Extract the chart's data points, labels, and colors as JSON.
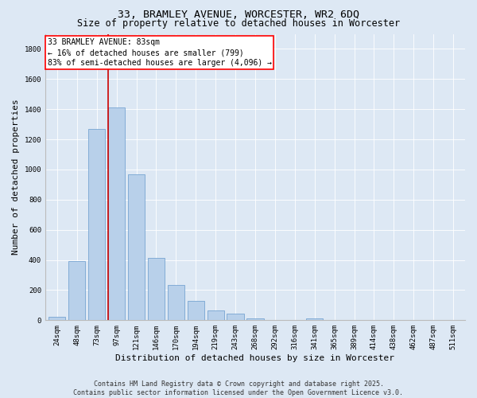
{
  "title": "33, BRAMLEY AVENUE, WORCESTER, WR2 6DQ",
  "subtitle": "Size of property relative to detached houses in Worcester",
  "xlabel": "Distribution of detached houses by size in Worcester",
  "ylabel": "Number of detached properties",
  "categories": [
    "24sqm",
    "48sqm",
    "73sqm",
    "97sqm",
    "121sqm",
    "146sqm",
    "170sqm",
    "194sqm",
    "219sqm",
    "243sqm",
    "268sqm",
    "292sqm",
    "316sqm",
    "341sqm",
    "365sqm",
    "389sqm",
    "414sqm",
    "438sqm",
    "462sqm",
    "487sqm",
    "511sqm"
  ],
  "values": [
    25,
    395,
    1270,
    1410,
    970,
    415,
    235,
    130,
    65,
    45,
    12,
    0,
    0,
    12,
    0,
    0,
    0,
    0,
    0,
    0,
    0
  ],
  "bar_color": "#b8d0ea",
  "bar_edge_color": "#6699cc",
  "red_line_color": "#cc0000",
  "red_line_x": 2.575,
  "annotation_text": "33 BRAMLEY AVENUE: 83sqm\n← 16% of detached houses are smaller (799)\n83% of semi-detached houses are larger (4,096) →",
  "ylim": [
    0,
    1900
  ],
  "yticks": [
    0,
    200,
    400,
    600,
    800,
    1000,
    1200,
    1400,
    1600,
    1800
  ],
  "background_color": "#dde8f4",
  "plot_bg_color": "#dde8f4",
  "footer": "Contains HM Land Registry data © Crown copyright and database right 2025.\nContains public sector information licensed under the Open Government Licence v3.0.",
  "title_fontsize": 9.5,
  "subtitle_fontsize": 8.5,
  "axis_label_fontsize": 8,
  "tick_fontsize": 6.5,
  "footer_fontsize": 6,
  "annot_fontsize": 7
}
